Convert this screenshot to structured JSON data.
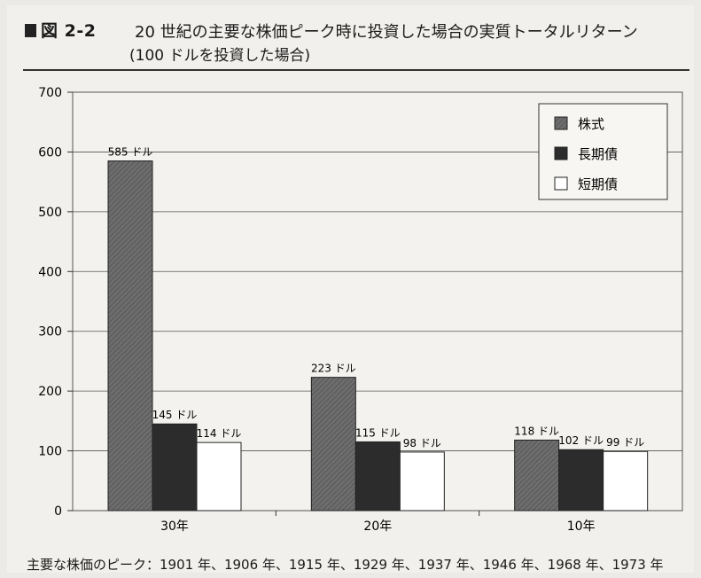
{
  "header": {
    "figure_label": "図 2-2",
    "title": "20 世紀の主要な株価ピーク時に投資した場合の実質トータルリターン",
    "subtitle": "(100 ドルを投資した場合)"
  },
  "footnote": "主要な株価のピーク：1901 年、1906 年、1915 年、1929 年、1937 年、1946 年、1968 年、1973 年",
  "colors": {
    "stock": "#6d6d6d",
    "long_bond": "#2c2c2c",
    "short_bond": "#ffffff"
  },
  "chart_data": {
    "type": "bar",
    "title": "",
    "xlabel": "",
    "ylabel": "",
    "ylim": [
      0,
      700
    ],
    "yticks": [
      "0",
      "100",
      "200",
      "300",
      "400",
      "500",
      "600",
      "700"
    ],
    "categories": [
      "30年",
      "20年",
      "10年"
    ],
    "grid": true,
    "legend_position": "top-right",
    "series": [
      {
        "name": "株式",
        "values": [
          585,
          223,
          118
        ],
        "labels": [
          "585 ドル",
          "223 ドル",
          "118 ドル"
        ]
      },
      {
        "name": "長期債",
        "values": [
          145,
          115,
          102
        ],
        "labels": [
          "145 ドル",
          "115 ドル",
          "102 ドル"
        ]
      },
      {
        "name": "短期債",
        "values": [
          114,
          98,
          99
        ],
        "labels": [
          "114 ドル",
          "98 ドル",
          "99 ドル"
        ]
      }
    ]
  }
}
